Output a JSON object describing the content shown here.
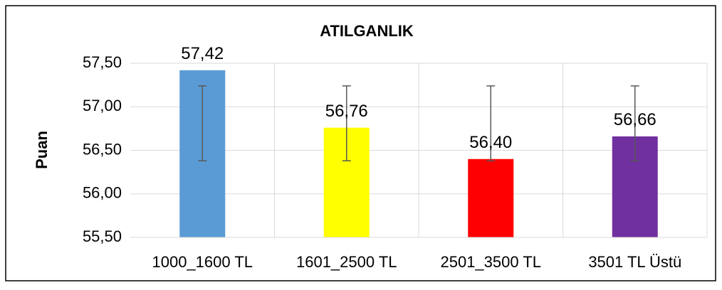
{
  "chart_data": {
    "type": "bar",
    "title": "ATILGANLIK",
    "y_label": "Puan",
    "categories": [
      "1000_1600 TL",
      "1601_2500 TL",
      "2501_3500 TL",
      "3501 TL Üstü"
    ],
    "values": [
      57.42,
      56.76,
      56.4,
      56.66
    ],
    "value_labels": [
      "57,42",
      "56,76",
      "56,40",
      "56,66"
    ],
    "colors": [
      "#5b9bd5",
      "#ffff00",
      "#ff0000",
      "#7030a0"
    ],
    "error_bars": [
      {
        "low": 56.38,
        "high": 57.24
      },
      {
        "low": 56.38,
        "high": 57.24
      },
      {
        "low": 56.38,
        "high": 57.24
      },
      {
        "low": 56.38,
        "high": 57.24
      }
    ],
    "ylim": [
      55.5,
      57.5
    ],
    "yticks": [
      {
        "value": 55.5,
        "label": "55,50"
      },
      {
        "value": 56,
        "label": "56,00"
      },
      {
        "value": 56.5,
        "label": "56,50"
      },
      {
        "value": 57,
        "label": "57,00"
      },
      {
        "value": 57.5,
        "label": "57,50"
      }
    ],
    "grid": true
  }
}
